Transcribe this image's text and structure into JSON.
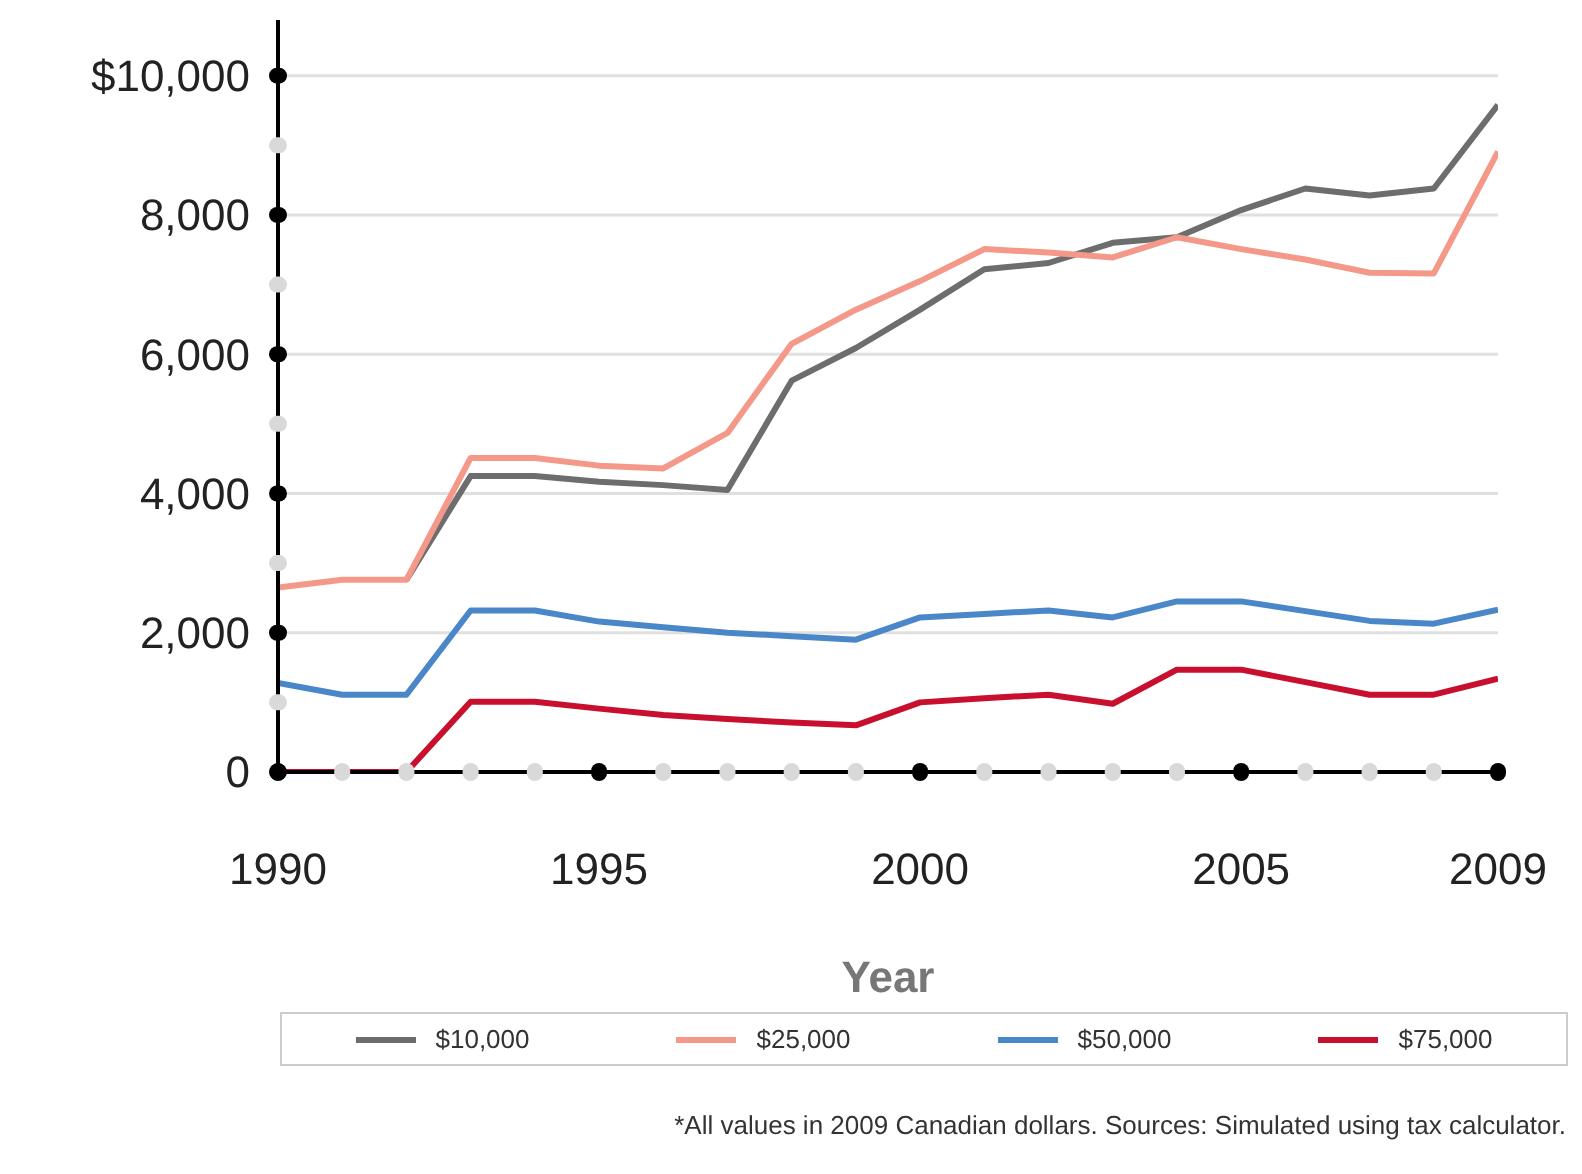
{
  "chart_data": {
    "type": "line",
    "xlabel": "Year",
    "x": [
      1990,
      1991,
      1992,
      1993,
      1994,
      1995,
      1996,
      1997,
      1998,
      1999,
      2000,
      2001,
      2002,
      2003,
      2004,
      2005,
      2006,
      2007,
      2008,
      2009
    ],
    "series": [
      {
        "name": "$10,000",
        "color": "#6d6d6d",
        "values": [
          null,
          null,
          2760,
          4250,
          4250,
          4170,
          4120,
          4050,
          5620,
          6090,
          6640,
          7220,
          7310,
          7600,
          7680,
          8070,
          8380,
          8280,
          8380,
          9580
        ]
      },
      {
        "name": "$25,000",
        "color": "#f4998a",
        "values": [
          2650,
          2760,
          2760,
          4510,
          4510,
          4400,
          4360,
          4870,
          6150,
          6640,
          7050,
          7510,
          7460,
          7390,
          7680,
          7510,
          7360,
          7170,
          7160,
          8910
        ]
      },
      {
        "name": "$50,000",
        "color": "#4a87c8",
        "values": [
          1280,
          1110,
          1110,
          2320,
          2320,
          2160,
          2080,
          2000,
          1950,
          1900,
          2220,
          2270,
          2320,
          2220,
          2450,
          2450,
          2310,
          2170,
          2130,
          2330
        ]
      },
      {
        "name": "$75,000",
        "color": "#c8102e",
        "values": [
          0,
          0,
          0,
          1010,
          1010,
          910,
          820,
          760,
          710,
          670,
          1000,
          1060,
          1110,
          980,
          1470,
          1470,
          1290,
          1110,
          1110,
          1340
        ]
      }
    ],
    "xlim": [
      1990,
      2009
    ],
    "xticks": [
      1990,
      {
        "value": 1991,
        "label": null
      },
      {
        "value": 1992,
        "label": null
      },
      {
        "value": 1993,
        "label": null
      },
      {
        "value": 1994,
        "label": null
      },
      1995,
      {
        "value": 1996,
        "label": null
      },
      {
        "value": 1997,
        "label": null
      },
      {
        "value": 1998,
        "label": null
      },
      {
        "value": 1999,
        "label": null
      },
      2000,
      {
        "value": 2001,
        "label": null
      },
      {
        "value": 2002,
        "label": null
      },
      {
        "value": 2003,
        "label": null
      },
      {
        "value": 2004,
        "label": null
      },
      2005,
      {
        "value": 2006,
        "label": null
      },
      {
        "value": 2007,
        "label": null
      },
      {
        "value": 2008,
        "label": null
      },
      2009
    ],
    "ylim": [
      0,
      10800
    ],
    "yticks": [
      {
        "value": 0,
        "label": "0"
      },
      {
        "value": 1000,
        "label": null
      },
      {
        "value": 2000,
        "label": "2,000"
      },
      {
        "value": 3000,
        "label": null
      },
      {
        "value": 4000,
        "label": "4,000"
      },
      {
        "value": 5000,
        "label": null
      },
      {
        "value": 6000,
        "label": "6,000"
      },
      {
        "value": 7000,
        "label": null
      },
      {
        "value": 8000,
        "label": "8,000"
      },
      {
        "value": 9000,
        "label": null
      },
      {
        "value": 10000,
        "label": "$10,000"
      }
    ],
    "grid": "y",
    "legend": "bottom",
    "marker": "none",
    "line_style": "solid",
    "annotations": [
      "*All values in 2009 Canadian dollars. Sources: Simulated using tax calculator."
    ]
  }
}
